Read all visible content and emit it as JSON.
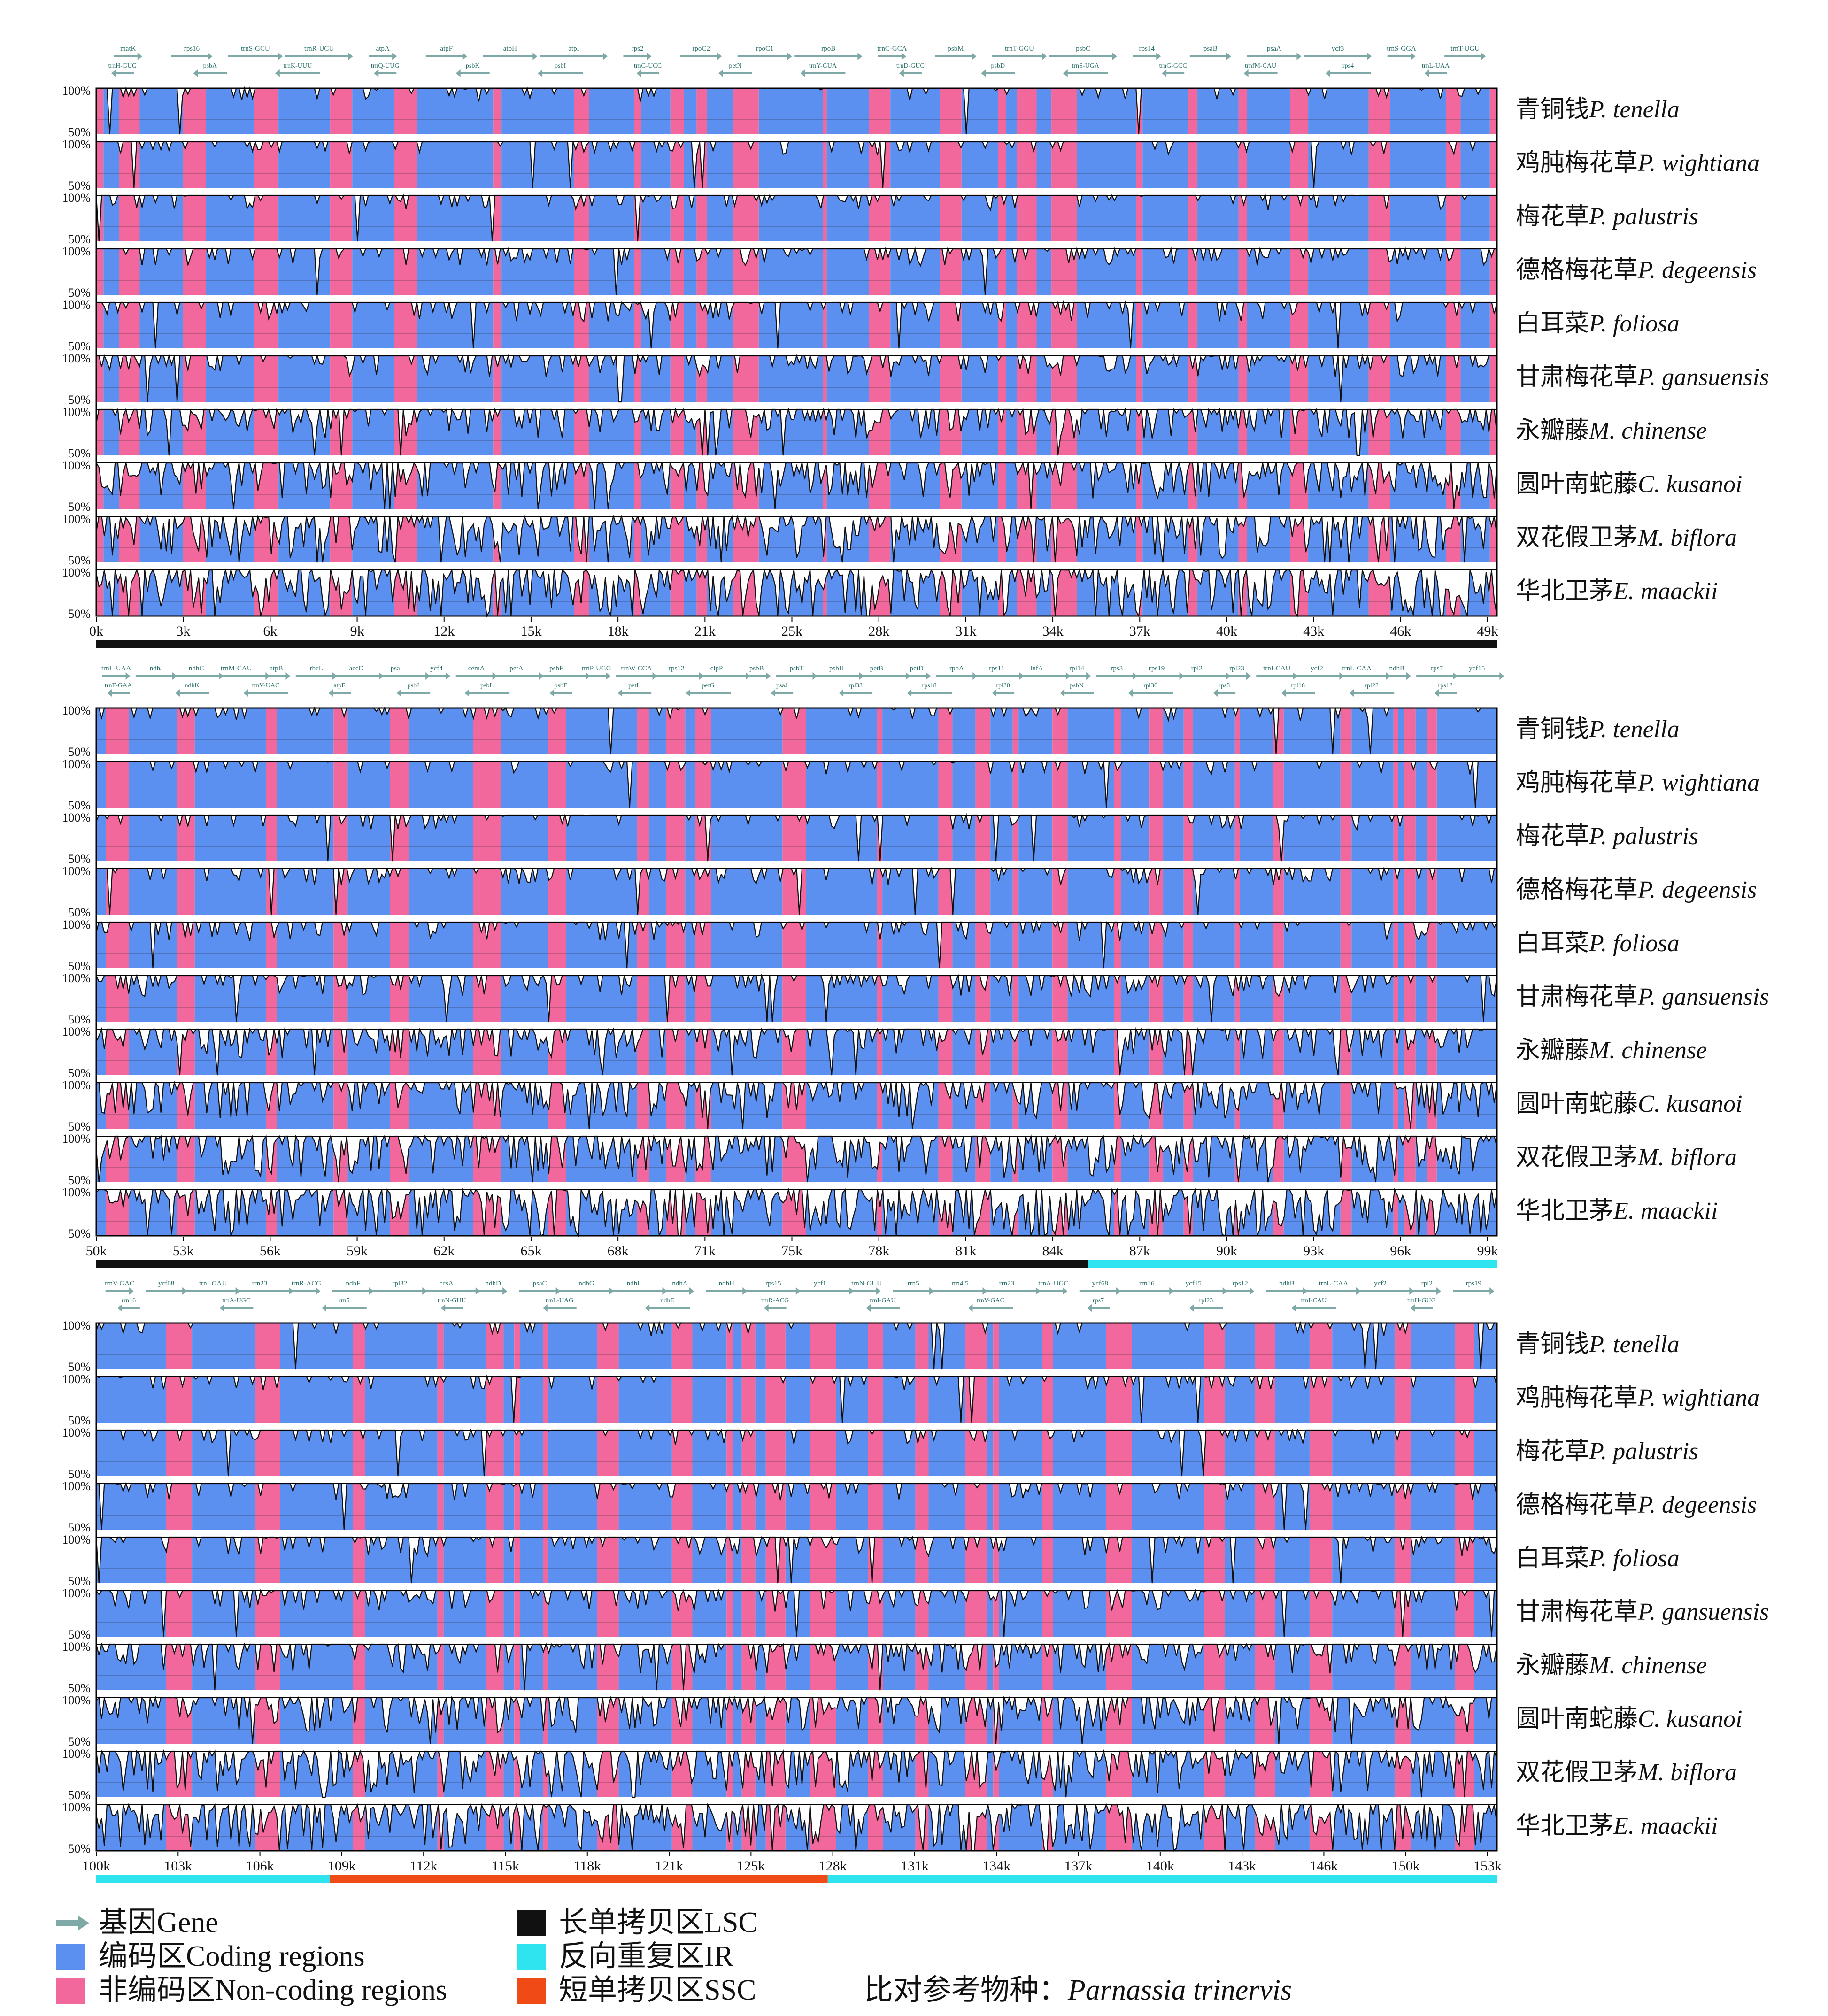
{
  "chart_data": {
    "type": "area",
    "reference": {
      "label": "比对参考物种：",
      "species": "Parnassia trinervis"
    },
    "y_tick_labels": [
      "100%",
      "50%"
    ],
    "species": [
      {
        "cn": "青铜钱",
        "latin": "P. tenella"
      },
      {
        "cn": "鸡肫梅花草",
        "latin": "P. wightiana"
      },
      {
        "cn": "梅花草",
        "latin": "P. palustris"
      },
      {
        "cn": "德格梅花草",
        "latin": "P. degeensis"
      },
      {
        "cn": "白耳菜",
        "latin": "P. foliosa"
      },
      {
        "cn": "甘肃梅花草",
        "latin": "P. gansuensis"
      },
      {
        "cn": "永瓣藤",
        "latin": "M. chinense"
      },
      {
        "cn": "圆叶南蛇藤",
        "latin": "C. kusanoi"
      },
      {
        "cn": "双花假卫茅",
        "latin": "M. biflora"
      },
      {
        "cn": "华北卫茅",
        "latin": "E. maackii"
      }
    ],
    "panels": [
      {
        "x_range": [
          0,
          50000
        ],
        "x_ticks": [
          "0k",
          "3k",
          "6k",
          "9k",
          "12k",
          "15k",
          "18k",
          "21k",
          "25k",
          "28k",
          "31k",
          "34k",
          "37k",
          "40k",
          "43k",
          "46k",
          "49k"
        ],
        "genes_top": [
          "matK",
          "rps16",
          "trnS-GCU",
          "trnR-UCU",
          "atpA",
          "atpF",
          "atpH",
          "atpI",
          "rps2",
          "rpoC2",
          "rpoC1",
          "rpoB",
          "trnC-GCA",
          "psbM",
          "trnT-GGU",
          "psbC",
          "rps14",
          "psaB",
          "psaA",
          "ycf3",
          "trnS-GGA",
          "trnT-UGU"
        ],
        "genes_bottom": [
          "trnH-GUG",
          "psbA",
          "trnK-UUU",
          "trnQ-UUG",
          "psbK",
          "psbI",
          "trnG-UCC",
          "petN",
          "trnY-GUA",
          "trnD-GUC",
          "psbD",
          "trnS-UGA",
          "trnG-GCC",
          "trnfM-CAU",
          "rps4",
          "trnL-UAA"
        ],
        "regions": [
          {
            "region": "LSC",
            "from": 0,
            "to": 50000
          }
        ]
      },
      {
        "x_range": [
          50000,
          100000
        ],
        "x_ticks": [
          "50k",
          "53k",
          "56k",
          "59k",
          "62k",
          "65k",
          "68k",
          "71k",
          "75k",
          "78k",
          "81k",
          "84k",
          "87k",
          "90k",
          "93k",
          "96k",
          "99k"
        ],
        "genes_top": [
          "trnL-UAA",
          "ndhJ",
          "ndhC",
          "trnM-CAU",
          "atpB",
          "rbcL",
          "accD",
          "psaI",
          "ycf4",
          "cemA",
          "petA",
          "psbE",
          "trnP-UGG",
          "trnW-CCA",
          "rps12",
          "clpP",
          "psbB",
          "psbT",
          "psbH",
          "petB",
          "petD",
          "rpoA",
          "rps11",
          "infA",
          "rpl14",
          "rps3",
          "rps19",
          "rpl2",
          "rpl23",
          "trnI-CAU",
          "ycf2",
          "trnL-CAA",
          "ndhB",
          "rps7",
          "ycf15"
        ],
        "genes_bottom": [
          "trnF-GAA",
          "ndhK",
          "trnV-UAC",
          "atpE",
          "psbJ",
          "psbL",
          "psbF",
          "petL",
          "petG",
          "psaJ",
          "rpl33",
          "rps18",
          "rpl20",
          "psbN",
          "rpl36",
          "rps8",
          "rpl16",
          "rpl22",
          "rps12"
        ],
        "regions": [
          {
            "region": "LSC",
            "from": 50000,
            "to": 85400
          },
          {
            "region": "IR",
            "from": 85400,
            "to": 100000
          }
        ]
      },
      {
        "x_range": [
          100000,
          154000
        ],
        "x_ticks": [
          "100k",
          "103k",
          "106k",
          "109k",
          "112k",
          "115k",
          "118k",
          "121k",
          "125k",
          "128k",
          "131k",
          "134k",
          "137k",
          "140k",
          "143k",
          "146k",
          "150k",
          "153k"
        ],
        "genes_top": [
          "trnV-GAC",
          "ycf68",
          "trnI-GAU",
          "rrn23",
          "trnR-ACG",
          "ndhF",
          "rpl32",
          "ccsA",
          "ndhD",
          "psaC",
          "ndhG",
          "ndhI",
          "ndhA",
          "ndhH",
          "rps15",
          "ycf1",
          "trnN-GUU",
          "rrn5",
          "rrn4.5",
          "rrn23",
          "trnA-UGC",
          "ycf68",
          "rrn16",
          "ycf15",
          "rps12",
          "ndhB",
          "trnL-CAA",
          "ycf2",
          "rpl2",
          "rps19"
        ],
        "genes_bottom": [
          "rrn16",
          "trnA-UGC",
          "rrn5",
          "trnN-GUU",
          "trnL-UAG",
          "ndhE",
          "trnR-ACG",
          "trnI-GAU",
          "trnV-GAC",
          "rps7",
          "rpl23",
          "trnI-CAU",
          "trnH-GUG"
        ],
        "regions": [
          {
            "region": "IR",
            "from": 100000,
            "to": 109000
          },
          {
            "region": "SSC",
            "from": 109000,
            "to": 128200
          },
          {
            "region": "IR",
            "from": 128200,
            "to": 154000
          }
        ]
      }
    ]
  },
  "legend": {
    "gene": "基因Gene",
    "coding": "编码区Coding regions",
    "noncoding": "非编码区Non-coding regions",
    "lsc": "长单拷贝区LSC",
    "ir": "反向重复区IR",
    "ssc": "短单拷贝区SSC",
    "reference_label": "比对参考物种：",
    "reference_species": "Parnassia trinervis"
  },
  "colors": {
    "coding": "#5b8ff0",
    "noncoding": "#f2689d",
    "gene_arrow": "#7ea9a6",
    "lsc": "#111111",
    "ir": "#2fe3ef",
    "ssc": "#f04a16",
    "trace": "#111111"
  }
}
